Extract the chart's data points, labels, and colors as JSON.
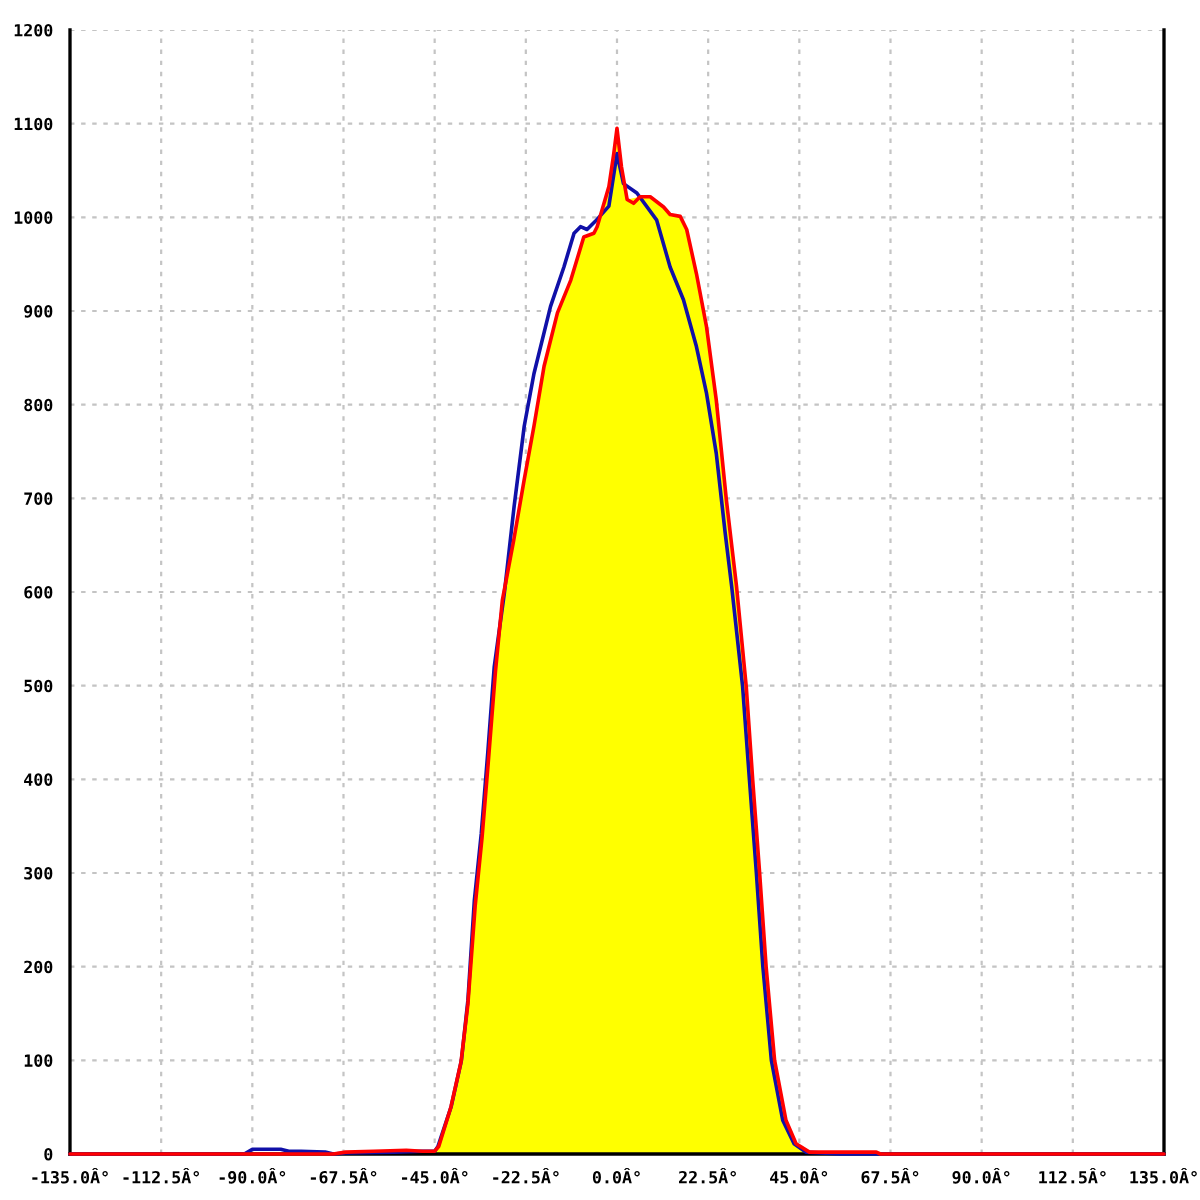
{
  "chart_data": {
    "type": "line",
    "xlim": [
      -135,
      135
    ],
    "ylim": [
      0,
      1200
    ],
    "xticks": [
      {
        "value": -135,
        "label": "-135.0Â°"
      },
      {
        "value": -112.5,
        "label": "-112.5Â°"
      },
      {
        "value": -90,
        "label": "-90.0Â°"
      },
      {
        "value": -67.5,
        "label": "-67.5Â°"
      },
      {
        "value": -45,
        "label": "-45.0Â°"
      },
      {
        "value": -22.5,
        "label": "-22.5Â°"
      },
      {
        "value": 0,
        "label": "0.0Â°"
      },
      {
        "value": 22.5,
        "label": "22.5Â°"
      },
      {
        "value": 45,
        "label": "45.0Â°"
      },
      {
        "value": 67.5,
        "label": "67.5Â°"
      },
      {
        "value": 90,
        "label": "90.0Â°"
      },
      {
        "value": 112.5,
        "label": "112.5Â°"
      },
      {
        "value": 135,
        "label": "135.0Â°"
      }
    ],
    "yticks": [
      0,
      100,
      200,
      300,
      400,
      500,
      600,
      700,
      800,
      900,
      1000,
      1100,
      1200
    ],
    "grid": true,
    "marker": "none",
    "line_style": "solid",
    "series": [
      {
        "type": "area",
        "color": "#ffff00",
        "x": [
          -67,
          -60,
          -52,
          -48,
          -45,
          -44,
          -41,
          -38.5,
          -36.8,
          -35,
          -33.3,
          -31.7,
          -30,
          -28.3,
          -25.5,
          -22.9,
          -20.5,
          -18,
          -14.7,
          -11.4,
          -8.2,
          -5.7,
          -2,
          0,
          2.5,
          5.7,
          8.2,
          13.1,
          15.6,
          17.2,
          19.6,
          22.1,
          24.5,
          27,
          29.5,
          31.9,
          33.5,
          35.2,
          36.8,
          38.9,
          41.7,
          44.2,
          47.5,
          64
        ],
        "values": [
          2,
          3,
          4,
          3,
          3,
          8,
          50,
          98,
          160,
          265,
          338,
          422,
          515,
          591,
          655,
          720,
          777,
          841,
          898,
          933,
          979,
          983,
          1033,
          1095,
          1019,
          1022,
          1022,
          1003,
          1001,
          987,
          940,
          883,
          805,
          698,
          606,
          499,
          399,
          300,
          200,
          100,
          36,
          11,
          2,
          2
        ]
      },
      {
        "color": "#1010a8",
        "x": [
          -135,
          -92,
          -90,
          -83,
          -81,
          -78,
          -72,
          -70,
          -67,
          -55,
          -48,
          -45,
          -44.2,
          -40.9,
          -38.4,
          -36.8,
          -35.2,
          -33.5,
          -31.9,
          -30.3,
          -27.8,
          -25.4,
          -22.9,
          -20.5,
          -16.4,
          -13.1,
          -10.6,
          -9,
          -7.4,
          -5.3,
          -2,
          0,
          1.6,
          4.9,
          9.8,
          13.1,
          16.4,
          19.6,
          22.1,
          24.5,
          26.7,
          28.3,
          31,
          32.7,
          34.4,
          36,
          38.1,
          40.9,
          43.7,
          46.6,
          55,
          135
        ],
        "values": [
          0,
          0,
          5,
          5,
          3,
          3,
          2,
          0,
          1,
          2,
          3,
          3,
          8,
          51,
          100,
          164,
          271,
          342,
          428,
          520,
          599,
          691,
          777,
          833,
          905,
          947,
          983,
          990,
          987,
          996,
          1012,
          1068,
          1036,
          1026,
          997,
          947,
          912,
          862,
          812,
          748,
          663,
          606,
          499,
          399,
          300,
          200,
          100,
          36,
          11,
          2,
          0,
          0
        ]
      },
      {
        "color": "#ff0000",
        "x": [
          -135,
          -90,
          -70,
          -67,
          -60,
          -52,
          -48,
          -45,
          -44,
          -41,
          -38.5,
          -36.8,
          -35,
          -33.3,
          -31.7,
          -30,
          -28.3,
          -25.5,
          -22.9,
          -20.5,
          -18,
          -14.7,
          -11.4,
          -8.2,
          -5.7,
          -4.9,
          -2,
          -0.8,
          0,
          1.1,
          2.5,
          4.1,
          5.7,
          8.2,
          11.5,
          13.1,
          15.6,
          17.2,
          19.6,
          22.1,
          24.5,
          27,
          29.5,
          31.9,
          33.5,
          35.2,
          36.8,
          38.9,
          41.7,
          44.2,
          47.5,
          55,
          64,
          65,
          135
        ],
        "values": [
          0,
          0,
          0,
          2,
          3,
          4,
          3,
          3,
          8,
          50,
          98,
          160,
          265,
          338,
          422,
          515,
          591,
          655,
          720,
          777,
          841,
          898,
          933,
          979,
          983,
          990,
          1033,
          1068,
          1095,
          1054,
          1019,
          1015,
          1022,
          1022,
          1011,
          1003,
          1001,
          987,
          940,
          883,
          805,
          698,
          606,
          499,
          399,
          300,
          200,
          100,
          36,
          11,
          2,
          2,
          2,
          0,
          0
        ]
      }
    ]
  }
}
